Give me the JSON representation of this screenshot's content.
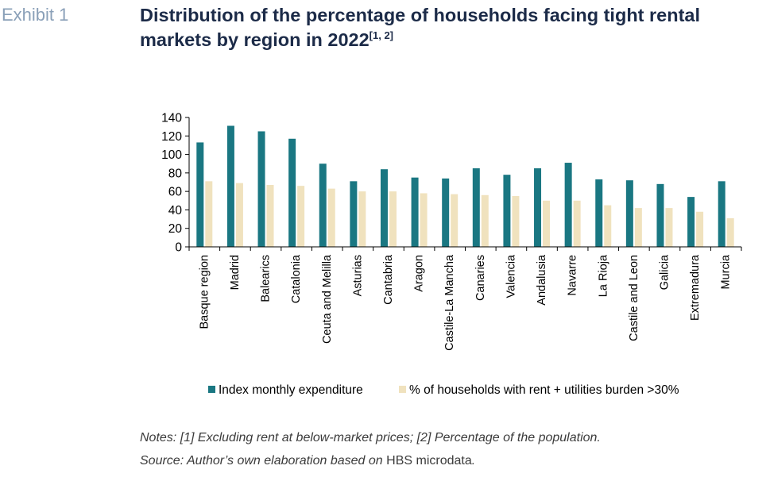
{
  "header": {
    "exhibit_label": "Exhibit 1",
    "title": "Distribution of the percentage of households facing tight rental markets by region in 2022",
    "title_sup": "[1, 2]"
  },
  "chart_data": {
    "type": "bar",
    "title": "",
    "xlabel": "",
    "ylabel": "",
    "ylim": [
      0,
      140
    ],
    "yticks": [
      0,
      20,
      40,
      60,
      80,
      100,
      120,
      140
    ],
    "grid": false,
    "legend_position": "bottom",
    "categories": [
      "Basque region",
      "Madrid",
      "Balearics",
      "Catalonia",
      "Ceuta and Melilla",
      "Asturias",
      "Cantabria",
      "Aragon",
      "Castile-La Mancha",
      "Canaries",
      "Valencia",
      "Andalusia",
      "Navarre",
      "La Rioja",
      "Castile and Leon",
      "Galicia",
      "Extremadura",
      "Murcia"
    ],
    "series": [
      {
        "name": "Index monthly expenditure",
        "color": "#1a7782",
        "values": [
          113,
          131,
          125,
          117,
          90,
          71,
          84,
          75,
          74,
          85,
          78,
          85,
          91,
          73,
          72,
          68,
          54,
          71
        ]
      },
      {
        "name": "% of households with rent + utilities burden >30%",
        "color": "#f0e2be",
        "values": [
          71,
          69,
          67,
          66,
          63,
          60,
          60,
          58,
          57,
          56,
          55,
          50,
          50,
          45,
          42,
          42,
          38,
          31
        ]
      }
    ]
  },
  "notes": {
    "line1": "Notes: [1] Excluding rent at below-market prices; [2] Percentage of the population.",
    "line2_prefix": "Source: Author’s own elaboration based on ",
    "line2_upright": "HBS microdata",
    "line2_suffix": "."
  }
}
